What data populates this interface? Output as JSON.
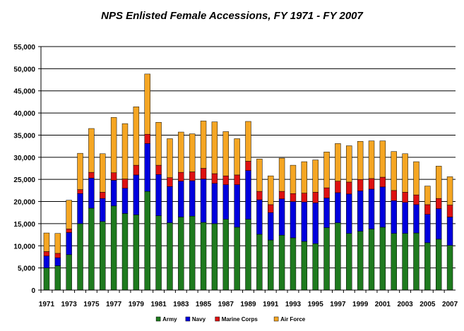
{
  "chart_data": {
    "type": "bar",
    "stacked": true,
    "title": "NPS Enlisted Female Accessions, FY 1971 - FY 2007",
    "xlabel": "",
    "ylabel": "",
    "ylim": [
      0,
      55000
    ],
    "yticks": [
      "0",
      "5,000",
      "10,000",
      "15,000",
      "20,000",
      "25,000",
      "30,000",
      "35,000",
      "40,000",
      "45,000",
      "50,000",
      "55,000"
    ],
    "grid": true,
    "legend_position": "bottom",
    "categories": [
      "1971",
      "1972",
      "1973",
      "1974",
      "1975",
      "1976",
      "1977",
      "1978",
      "1979",
      "1980",
      "1981",
      "1982",
      "1983",
      "1984",
      "1985",
      "1986",
      "1987",
      "1988",
      "1989",
      "1990",
      "1991",
      "1992",
      "1993",
      "1994",
      "1995",
      "1996",
      "1997",
      "1998",
      "1999",
      "2000",
      "2001",
      "2002",
      "2003",
      "2004",
      "2005",
      "2006",
      "2007"
    ],
    "xtick_labels": [
      "1971",
      "1973",
      "1975",
      "1977",
      "1979",
      "1981",
      "1983",
      "1985",
      "1987",
      "1989",
      "1991",
      "1993",
      "1995",
      "1997",
      "1999",
      "2001",
      "2003",
      "2005",
      "2007"
    ],
    "series": [
      {
        "name": "Army",
        "color": "#1e7a1e",
        "values": [
          5000,
          5500,
          8000,
          15000,
          18500,
          15500,
          19000,
          17300,
          17000,
          22300,
          16800,
          15200,
          16500,
          16700,
          15300,
          15000,
          16000,
          14200,
          16000,
          12600,
          11300,
          12400,
          11800,
          11000,
          10500,
          14100,
          15200,
          12800,
          13300,
          13800,
          14200,
          12800,
          12800,
          12900,
          10700,
          11500,
          10100
        ]
      },
      {
        "name": "Navy",
        "color": "#0000dd",
        "values": [
          2700,
          1800,
          5000,
          6800,
          6800,
          5200,
          5800,
          5700,
          9000,
          10800,
          9300,
          8200,
          8100,
          8000,
          9800,
          9100,
          7800,
          9600,
          11000,
          7800,
          6200,
          8200,
          8200,
          8900,
          9200,
          6700,
          6800,
          8900,
          9100,
          9000,
          9100,
          7400,
          7000,
          6400,
          6400,
          6900,
          6400
        ]
      },
      {
        "name": "Marine Corps",
        "color": "#dd1111",
        "values": [
          1000,
          1000,
          800,
          900,
          1300,
          1400,
          1700,
          2100,
          2200,
          2100,
          2100,
          2000,
          2000,
          2000,
          2400,
          2200,
          2000,
          2200,
          2100,
          1900,
          1800,
          1700,
          1800,
          2000,
          2400,
          2300,
          2600,
          2700,
          2600,
          2400,
          2200,
          2300,
          2300,
          2200,
          2200,
          2300,
          2700
        ]
      },
      {
        "name": "Air Force",
        "color": "#f5a623",
        "values": [
          4200,
          4500,
          6500,
          8200,
          9900,
          8700,
          12500,
          12500,
          13200,
          13600,
          9700,
          8800,
          9100,
          8600,
          10700,
          11700,
          10000,
          8200,
          9000,
          7300,
          6500,
          7500,
          6400,
          7100,
          7300,
          8100,
          8500,
          8200,
          8600,
          8500,
          8200,
          8800,
          8700,
          7500,
          4200,
          7300,
          6400
        ]
      }
    ]
  }
}
